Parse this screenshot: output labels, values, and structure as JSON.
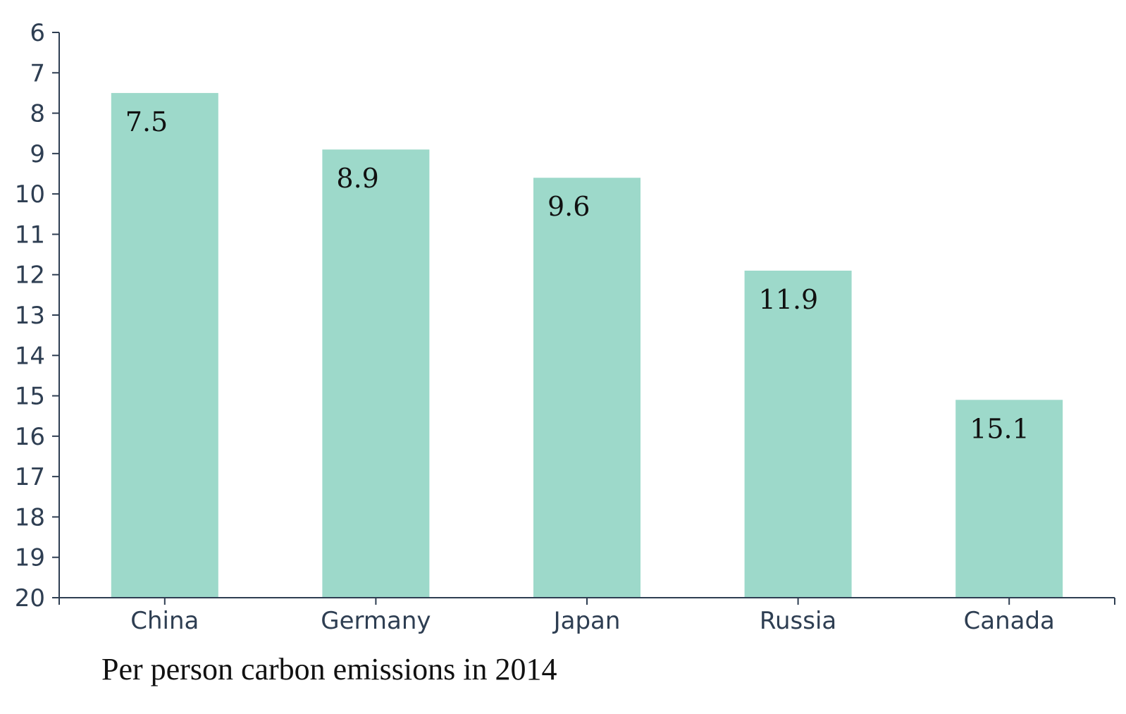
{
  "chart_data": {
    "type": "bar",
    "title": "Per person carbon emissions in 2014",
    "xlabel": "",
    "ylabel": "",
    "categories": [
      "China",
      "Germany",
      "Japan",
      "Russia",
      "Canada"
    ],
    "values": [
      7.5,
      8.9,
      9.6,
      11.9,
      15.1
    ],
    "data_labels": [
      "7.5",
      "8.9",
      "9.6",
      "11.9",
      "15.1"
    ],
    "ylim": [
      6,
      20
    ],
    "y_axis_inverted": true,
    "y_ticks": [
      6,
      7,
      8,
      9,
      10,
      11,
      12,
      13,
      14,
      15,
      16,
      17,
      18,
      19,
      20
    ],
    "grid": false,
    "legend": "none",
    "colors": {
      "bar": "#9dd9ca",
      "axis": "#2e3e52",
      "tick_text": "#2e3e52",
      "label_text": "#111111"
    }
  }
}
